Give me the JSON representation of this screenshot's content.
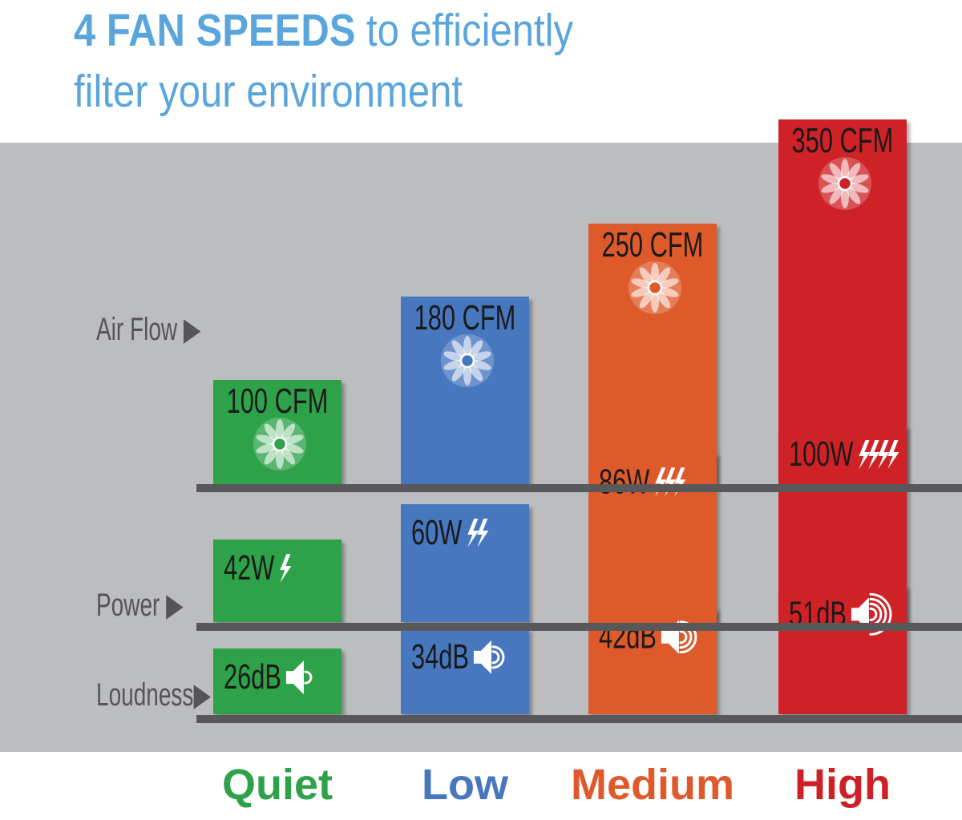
{
  "headline": {
    "strong": "4 FAN SPEEDS",
    "rest": " to efficiently",
    "line2": "filter your environment",
    "color": "#5aa6dc"
  },
  "row_labels": {
    "airflow": "Air Flow",
    "power": "Power",
    "loudness": "Loudness"
  },
  "chart_data": {
    "type": "bar",
    "categories": [
      "Quiet",
      "Low",
      "Medium",
      "High"
    ],
    "colors": [
      "#2da24a",
      "#4777bf",
      "#de5a2c",
      "#cf2027"
    ],
    "series": [
      {
        "name": "Air Flow",
        "values": [
          100,
          180,
          250,
          350
        ],
        "unit": "CFM",
        "labels": [
          "100 CFM",
          "180 CFM",
          "250 CFM",
          "350 CFM"
        ]
      },
      {
        "name": "Power",
        "values": [
          42,
          60,
          86,
          100
        ],
        "unit": "W",
        "labels": [
          "42W",
          "60W",
          "86W",
          "100W"
        ]
      },
      {
        "name": "Loudness",
        "values": [
          26,
          34,
          42,
          51
        ],
        "unit": "dB",
        "labels": [
          "26dB",
          "34dB",
          "42dB",
          "51dB"
        ]
      }
    ],
    "icons": {
      "airflow": "fan-icon",
      "power": "lightning-bolt-icon",
      "loudness": "speaker-icon"
    }
  }
}
